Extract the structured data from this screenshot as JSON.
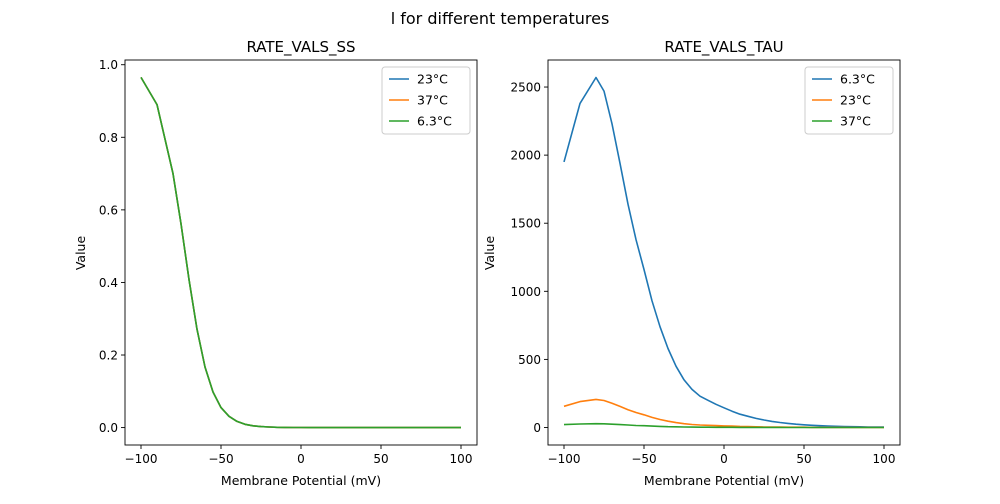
{
  "figure_title": "l for different temperatures",
  "colors": {
    "blue": "#1f77b4",
    "orange": "#ff7f0e",
    "green": "#2ca02c"
  },
  "chart_data": [
    {
      "type": "line",
      "title": "RATE_VALS_SS",
      "xlabel": "Membrane Potential (mV)",
      "ylabel": "Value",
      "xlim": [
        -110,
        110
      ],
      "ylim": [
        -0.048,
        1.013
      ],
      "xticks": [
        -100,
        -50,
        0,
        50,
        100
      ],
      "yticks": [
        0.0,
        0.2,
        0.4,
        0.6,
        0.8,
        1.0
      ],
      "ytick_decimals": 1,
      "grid": false,
      "legend_placement": "top-right",
      "x": [
        -100,
        -90,
        -80,
        -75,
        -70,
        -65,
        -60,
        -55,
        -50,
        -45,
        -40,
        -35,
        -30,
        -25,
        -20,
        -15,
        -10,
        -5,
        0,
        5,
        10,
        15,
        20,
        25,
        30,
        35,
        40,
        45,
        50,
        55,
        60,
        65,
        70,
        75,
        80,
        85,
        90,
        95,
        100
      ],
      "series": [
        {
          "name": "23°C",
          "color": "#1f77b4",
          "values": [
            0.965,
            0.89,
            0.7,
            0.562,
            0.408,
            0.271,
            0.167,
            0.098,
            0.055,
            0.031,
            0.017,
            0.009,
            0.005,
            0.0027,
            0.0015,
            0.0008,
            0.0004,
            0.0002,
            0.0001,
            0,
            0,
            0,
            0,
            0,
            0,
            0,
            0,
            0,
            0,
            0,
            0,
            0,
            0,
            0,
            0,
            0,
            0,
            0,
            0
          ]
        },
        {
          "name": "37°C",
          "color": "#ff7f0e",
          "values": [
            0.965,
            0.89,
            0.7,
            0.562,
            0.408,
            0.271,
            0.167,
            0.098,
            0.055,
            0.031,
            0.017,
            0.009,
            0.005,
            0.0027,
            0.0015,
            0.0008,
            0.0004,
            0.0002,
            0.0001,
            0,
            0,
            0,
            0,
            0,
            0,
            0,
            0,
            0,
            0,
            0,
            0,
            0,
            0,
            0,
            0,
            0,
            0,
            0,
            0
          ]
        },
        {
          "name": "6.3°C",
          "color": "#2ca02c",
          "values": [
            0.965,
            0.89,
            0.7,
            0.562,
            0.408,
            0.271,
            0.167,
            0.098,
            0.055,
            0.031,
            0.017,
            0.009,
            0.005,
            0.0027,
            0.0015,
            0.0008,
            0.0004,
            0.0002,
            0.0001,
            0,
            0,
            0,
            0,
            0,
            0,
            0,
            0,
            0,
            0,
            0,
            0,
            0,
            0,
            0,
            0,
            0,
            0,
            0,
            0
          ]
        }
      ]
    },
    {
      "type": "line",
      "title": "RATE_VALS_TAU",
      "xlabel": "Membrane Potential (mV)",
      "ylabel": "Value",
      "xlim": [
        -110,
        110
      ],
      "ylim": [
        -128.5,
        2698.5
      ],
      "xticks": [
        -100,
        -50,
        0,
        50,
        100
      ],
      "yticks": [
        0,
        500,
        1000,
        1500,
        2000,
        2500
      ],
      "ytick_decimals": 0,
      "grid": false,
      "legend_placement": "top-right",
      "x": [
        -100,
        -90,
        -80,
        -75,
        -70,
        -65,
        -60,
        -55,
        -50,
        -45,
        -40,
        -35,
        -30,
        -25,
        -20,
        -15,
        -10,
        -5,
        0,
        5,
        10,
        15,
        20,
        25,
        30,
        35,
        40,
        45,
        50,
        55,
        60,
        65,
        70,
        75,
        80,
        85,
        90,
        95,
        100
      ],
      "series": [
        {
          "name": "6.3°C",
          "color": "#1f77b4",
          "values": [
            1950,
            2380,
            2570,
            2470,
            2230,
            1940,
            1640,
            1380,
            1160,
            930,
            740,
            580,
            450,
            350,
            280,
            230,
            200,
            170,
            145,
            120,
            98,
            82,
            67,
            55,
            45,
            37,
            30,
            24,
            20,
            16,
            13,
            11,
            9,
            7,
            6,
            5,
            4,
            3,
            3
          ]
        },
        {
          "name": "23°C",
          "color": "#ff7f0e",
          "values": [
            156,
            190,
            206,
            198,
            178,
            155,
            131,
            110,
            93,
            74,
            59,
            46,
            36,
            28,
            22,
            18,
            16,
            14,
            12,
            10,
            8,
            7,
            5,
            4,
            4,
            3,
            2,
            2,
            2,
            1,
            1,
            1,
            1,
            1,
            0,
            0,
            0,
            0,
            0
          ]
        },
        {
          "name": "37°C",
          "color": "#2ca02c",
          "values": [
            21,
            26,
            28,
            27,
            24,
            21,
            18,
            15,
            13,
            10,
            8,
            6,
            5,
            4,
            3,
            2.5,
            2.2,
            1.8,
            1.6,
            1.3,
            1.1,
            0.9,
            0.7,
            0.6,
            0.5,
            0.4,
            0.3,
            0.3,
            0.2,
            0.2,
            0.1,
            0.1,
            0.1,
            0.1,
            0.1,
            0.1,
            0,
            0,
            0
          ]
        }
      ]
    }
  ]
}
